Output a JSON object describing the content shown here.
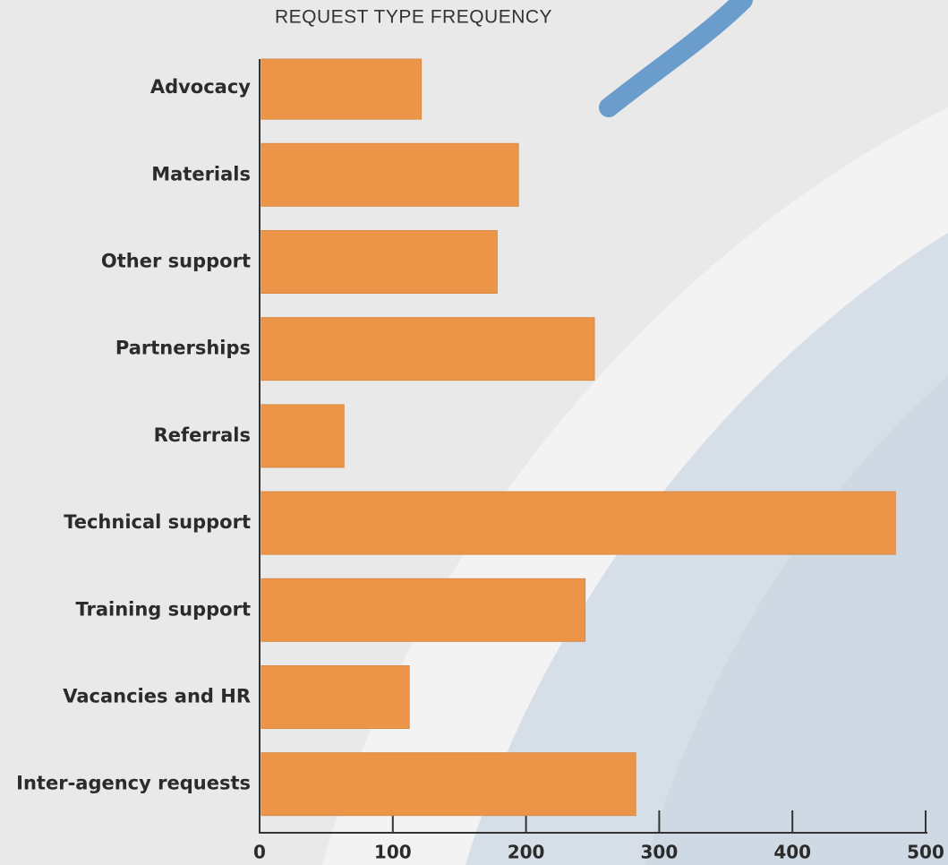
{
  "chart_data": {
    "type": "hbar",
    "title": "REQUEST TYPE FREQUENCY",
    "categories": [
      "Advocacy",
      "Materials",
      "Other support",
      "Partnerships",
      "Referrals",
      "Technical support",
      "Training support",
      "Vacancies and HR",
      "Inter-agency requests"
    ],
    "values": [
      120,
      193,
      177,
      250,
      62,
      476,
      243,
      111,
      281
    ],
    "color": "#ec9549",
    "xlim": [
      0,
      500
    ],
    "xticks": [
      0,
      100,
      200,
      300,
      400,
      500
    ]
  }
}
